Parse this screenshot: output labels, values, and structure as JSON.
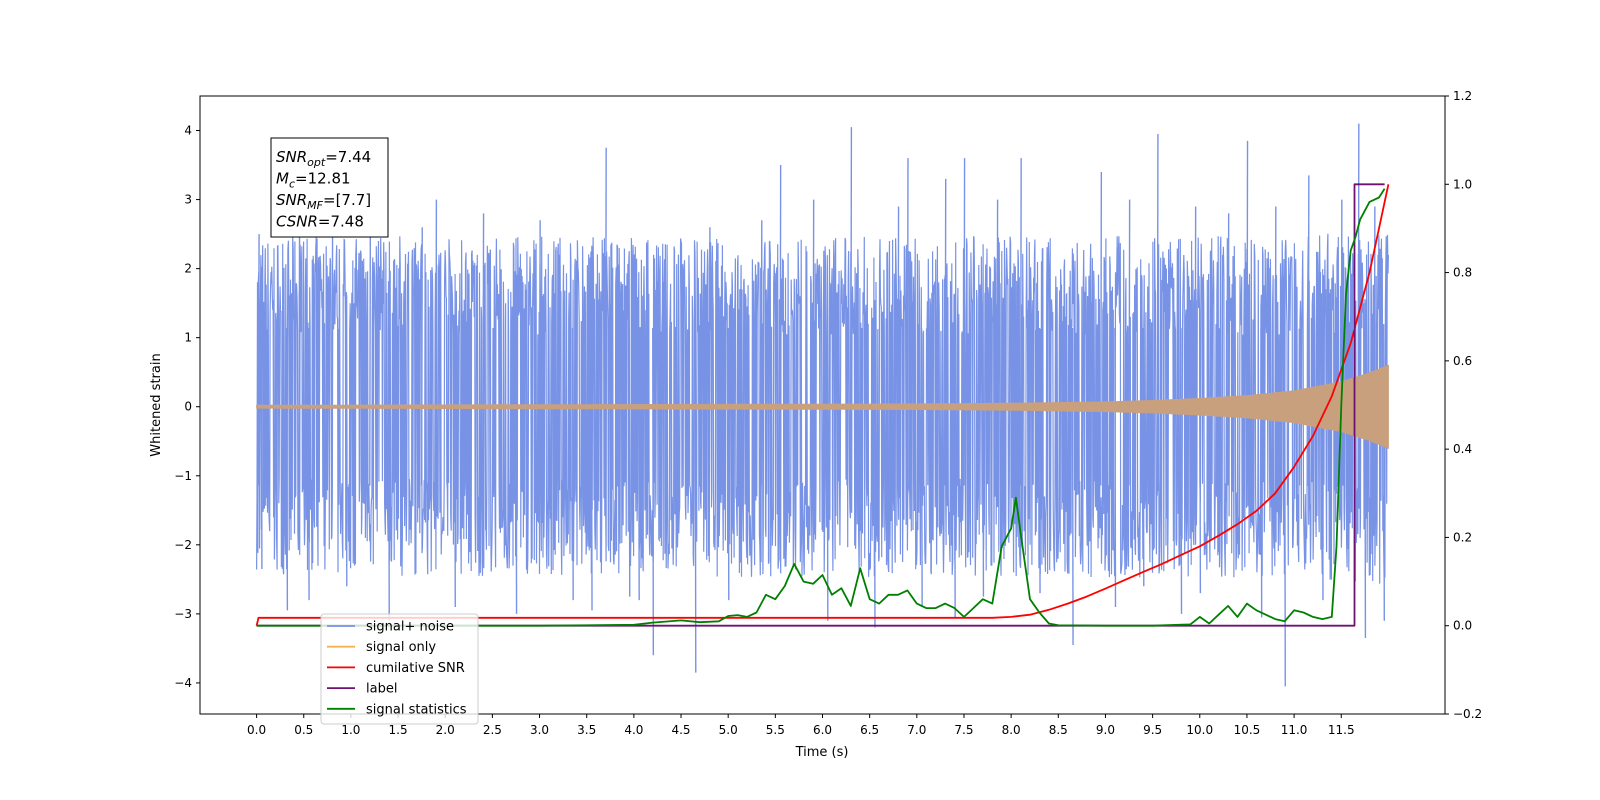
{
  "chart_data": {
    "type": "line",
    "xlabel": "Time (s)",
    "ylabel": "Whitened strain",
    "xlim": [
      -0.6,
      12.6
    ],
    "ylim": [
      -4.45,
      4.5
    ],
    "y2lim": [
      -0.2,
      1.2
    ],
    "x_ticks": [
      0.0,
      0.5,
      1.0,
      1.5,
      2.0,
      2.5,
      3.0,
      3.5,
      4.0,
      4.5,
      5.0,
      5.5,
      6.0,
      6.5,
      7.0,
      7.5,
      8.0,
      8.5,
      9.0,
      9.5,
      10.0,
      10.5,
      11.0,
      11.5
    ],
    "x_tick_labels": [
      "0.0",
      "0.5",
      "1.0",
      "1.5",
      "2.0",
      "2.5",
      "3.0",
      "3.5",
      "4.0",
      "4.5",
      "5.0",
      "5.5",
      "6.0",
      "6.5",
      "7.0",
      "7.5",
      "8.0",
      "8.5",
      "9.0",
      "9.5",
      "10.0",
      "10.5",
      "11.0",
      "11.5"
    ],
    "y_ticks": [
      4,
      3,
      2,
      1,
      0,
      -1,
      -2,
      -3,
      -4
    ],
    "y_tick_labels": [
      "4",
      "3",
      "2",
      "1",
      "0",
      "−1",
      "−2",
      "−3",
      "−4"
    ],
    "y2_ticks": [
      1.2,
      1.0,
      0.8,
      0.6,
      0.4,
      0.2,
      0.0,
      -0.2
    ],
    "y2_tick_labels": [
      "1.2",
      "1.0",
      "0.8",
      "0.6",
      "0.4",
      "0.2",
      "0.0",
      "−0.2"
    ],
    "grid": false,
    "legend_position": "lower-left",
    "annotation": {
      "lines": [
        {
          "symbol": "SNR",
          "sub": "opt",
          "text": "=7.44"
        },
        {
          "symbol": "M",
          "sub": "c",
          "text": "=12.81"
        },
        {
          "symbol": "SNR",
          "sub": "MF",
          "text": "=[7.7]"
        },
        {
          "symbol": "CSNR",
          "sub": "",
          "text": "=7.48"
        }
      ]
    },
    "series": [
      {
        "name": "signal+ noise",
        "color": "#7893e6",
        "axis": "left",
        "description_kind": "noise",
        "x_range": [
          0.0,
          12.0
        ],
        "envelope": [
          [
            0.0,
            -1.9,
            1.9
          ],
          [
            11.0,
            -1.9,
            1.9
          ],
          [
            12.0,
            -2.0,
            2.0
          ]
        ],
        "spikes": [
          [
            0.02,
            2.5
          ],
          [
            0.05,
            -2.35
          ],
          [
            0.32,
            -2.95
          ],
          [
            0.45,
            3.3
          ],
          [
            0.55,
            -2.8
          ],
          [
            0.8,
            3.1
          ],
          [
            0.95,
            -2.6
          ],
          [
            1.2,
            2.9
          ],
          [
            1.4,
            -3.1
          ],
          [
            1.75,
            2.6
          ],
          [
            1.9,
            3.0
          ],
          [
            2.1,
            -2.9
          ],
          [
            2.4,
            2.8
          ],
          [
            2.75,
            -3.0
          ],
          [
            3.0,
            2.7
          ],
          [
            3.35,
            -2.8
          ],
          [
            3.55,
            -2.95
          ],
          [
            3.7,
            3.75
          ],
          [
            3.95,
            -2.75
          ],
          [
            4.05,
            -2.8
          ],
          [
            4.2,
            -3.6
          ],
          [
            4.65,
            -3.85
          ],
          [
            4.8,
            2.6
          ],
          [
            5.0,
            -2.8
          ],
          [
            5.35,
            2.7
          ],
          [
            5.55,
            3.5
          ],
          [
            5.9,
            3.0
          ],
          [
            6.05,
            -3.1
          ],
          [
            6.3,
            4.05
          ],
          [
            6.55,
            -3.2
          ],
          [
            6.8,
            2.9
          ],
          [
            6.9,
            3.6
          ],
          [
            7.05,
            -2.9
          ],
          [
            7.3,
            3.3
          ],
          [
            7.4,
            -3.05
          ],
          [
            7.5,
            3.6
          ],
          [
            7.7,
            -2.75
          ],
          [
            7.85,
            3.0
          ],
          [
            8.1,
            3.6
          ],
          [
            8.3,
            -2.7
          ],
          [
            8.65,
            -3.45
          ],
          [
            8.95,
            3.4
          ],
          [
            9.1,
            -2.9
          ],
          [
            9.25,
            3.0
          ],
          [
            9.4,
            -2.6
          ],
          [
            9.55,
            3.95
          ],
          [
            9.8,
            -3.0
          ],
          [
            9.95,
            2.9
          ],
          [
            10.0,
            -2.7
          ],
          [
            10.3,
            2.8
          ],
          [
            10.5,
            3.85
          ],
          [
            10.65,
            -3.05
          ],
          [
            10.8,
            2.9
          ],
          [
            10.9,
            -4.05
          ],
          [
            11.15,
            3.35
          ],
          [
            11.3,
            -2.8
          ],
          [
            11.5,
            3.0
          ],
          [
            11.68,
            4.1
          ],
          [
            11.75,
            -3.35
          ],
          [
            11.85,
            2.9
          ],
          [
            11.95,
            -3.1
          ]
        ]
      },
      {
        "name": "signal only",
        "color": "#f5b352",
        "band_color": "#c9a07e",
        "axis": "left",
        "description_kind": "chirp-envelope",
        "envelope": [
          [
            0.0,
            0.02
          ],
          [
            7.0,
            0.04
          ],
          [
            8.0,
            0.05
          ],
          [
            9.0,
            0.07
          ],
          [
            9.5,
            0.09
          ],
          [
            10.0,
            0.12
          ],
          [
            10.5,
            0.16
          ],
          [
            11.0,
            0.23
          ],
          [
            11.5,
            0.36
          ],
          [
            11.8,
            0.49
          ],
          [
            12.0,
            0.6
          ]
        ]
      },
      {
        "name": "cumilative SNR",
        "color": "#ff0000",
        "axis": "right",
        "x": [
          0.0,
          0.02,
          1.0,
          2.0,
          3.0,
          4.0,
          5.0,
          6.0,
          7.0,
          7.5,
          7.8,
          8.0,
          8.2,
          8.4,
          8.6,
          8.8,
          9.0,
          9.2,
          9.4,
          9.6,
          9.8,
          10.0,
          10.2,
          10.4,
          10.6,
          10.8,
          11.0,
          11.2,
          11.4,
          11.6,
          11.8,
          11.9,
          12.0
        ],
        "values": [
          0.0,
          0.018,
          0.018,
          0.018,
          0.018,
          0.018,
          0.018,
          0.018,
          0.018,
          0.018,
          0.018,
          0.02,
          0.025,
          0.036,
          0.05,
          0.066,
          0.084,
          0.103,
          0.122,
          0.14,
          0.16,
          0.18,
          0.204,
          0.23,
          0.26,
          0.3,
          0.36,
          0.43,
          0.52,
          0.64,
          0.8,
          0.9,
          1.0
        ]
      },
      {
        "name": "label",
        "color": "#6f1173",
        "axis": "right",
        "x": [
          0.0,
          11.64,
          11.64,
          11.96
        ],
        "values": [
          0.0,
          0.0,
          1.0,
          1.0
        ]
      },
      {
        "name": "signal statistics",
        "color": "#008000",
        "axis": "right",
        "x": [
          0.0,
          1.0,
          2.0,
          3.0,
          3.5,
          4.0,
          4.2,
          4.5,
          4.7,
          4.9,
          5.0,
          5.1,
          5.2,
          5.3,
          5.4,
          5.5,
          5.6,
          5.7,
          5.8,
          5.9,
          6.0,
          6.1,
          6.2,
          6.3,
          6.4,
          6.5,
          6.6,
          6.7,
          6.8,
          6.9,
          7.0,
          7.1,
          7.2,
          7.3,
          7.4,
          7.5,
          7.6,
          7.7,
          7.8,
          7.9,
          8.0,
          8.05,
          8.1,
          8.2,
          8.3,
          8.4,
          8.5,
          9.0,
          9.5,
          9.9,
          10.0,
          10.1,
          10.2,
          10.3,
          10.4,
          10.5,
          10.6,
          10.7,
          10.8,
          10.9,
          11.0,
          11.1,
          11.2,
          11.3,
          11.4,
          11.45,
          11.5,
          11.55,
          11.6,
          11.65,
          11.7,
          11.8,
          11.9,
          11.96
        ],
        "values": [
          0.0,
          0.0,
          0.0,
          0.0,
          0.001,
          0.002,
          0.007,
          0.012,
          0.008,
          0.01,
          0.022,
          0.024,
          0.02,
          0.03,
          0.07,
          0.06,
          0.09,
          0.14,
          0.1,
          0.095,
          0.115,
          0.07,
          0.085,
          0.045,
          0.13,
          0.06,
          0.05,
          0.07,
          0.07,
          0.08,
          0.05,
          0.04,
          0.04,
          0.05,
          0.04,
          0.02,
          0.04,
          0.06,
          0.05,
          0.18,
          0.22,
          0.29,
          0.21,
          0.06,
          0.03,
          0.005,
          0.001,
          0.0,
          0.0,
          0.003,
          0.02,
          0.005,
          0.025,
          0.045,
          0.02,
          0.05,
          0.035,
          0.025,
          0.015,
          0.01,
          0.035,
          0.03,
          0.02,
          0.015,
          0.02,
          0.18,
          0.5,
          0.75,
          0.85,
          0.88,
          0.92,
          0.96,
          0.97,
          0.99
        ]
      }
    ]
  }
}
